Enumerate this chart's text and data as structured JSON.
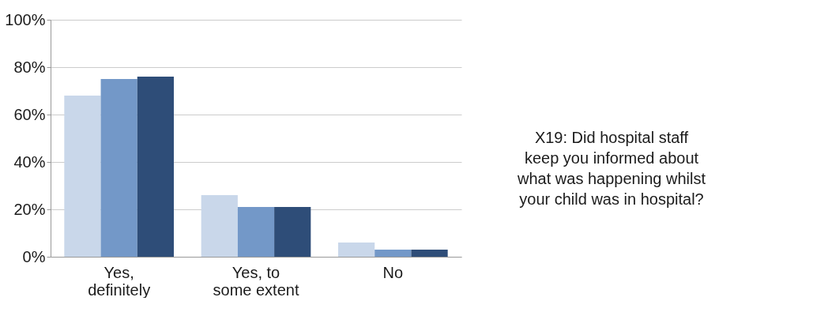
{
  "chart_data": {
    "type": "bar",
    "title": "X19: Did hospital staff keep you informed about what was happening whilst your child was in hospital?",
    "categories": [
      "Yes, definitely",
      "Yes, to some extent",
      "No"
    ],
    "series": [
      {
        "color": "#c9d7ea",
        "values": [
          68,
          26,
          6
        ]
      },
      {
        "color": "#7398c8",
        "values": [
          75,
          21,
          3
        ]
      },
      {
        "color": "#2e4d78",
        "values": [
          76,
          21,
          3
        ]
      }
    ],
    "ylim": [
      0,
      100
    ],
    "yticks": [
      {
        "value": 0,
        "label": "0%"
      },
      {
        "value": 20,
        "label": "20%"
      },
      {
        "value": 40,
        "label": "40%"
      },
      {
        "value": 60,
        "label": "60%"
      },
      {
        "value": 80,
        "label": "80%"
      },
      {
        "value": 100,
        "label": "100%"
      }
    ],
    "grid": "y",
    "legend": false
  }
}
